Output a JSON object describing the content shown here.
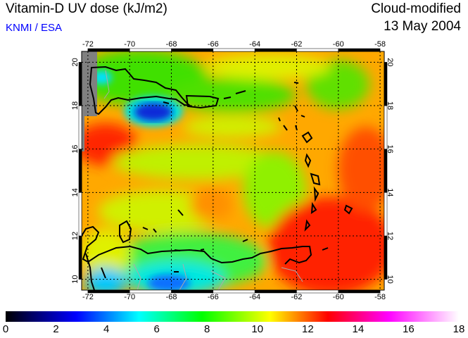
{
  "header": {
    "title": "Vitamin-D UV dose (kJ/m2)",
    "credit": "KNMI / ESA",
    "mode": "Cloud-modified",
    "date": "13 May 2004"
  },
  "map": {
    "lon_ticks": [
      "-72",
      "-70",
      "-68",
      "-66",
      "-64",
      "-62",
      "-60",
      "-58"
    ],
    "lat_ticks": [
      "20",
      "18",
      "16",
      "14",
      "12",
      "10"
    ],
    "lon_range": [
      -72.3,
      -57.8
    ],
    "lat_range": [
      9.5,
      20.5
    ]
  },
  "colorbar": {
    "ticks": [
      "0",
      "2",
      "4",
      "6",
      "8",
      "10",
      "12",
      "14",
      "16",
      "18"
    ],
    "range": [
      0,
      18
    ],
    "stops": [
      {
        "v": 0,
        "c": "#000000"
      },
      {
        "v": 1,
        "c": "#000060"
      },
      {
        "v": 2.8,
        "c": "#0000ff"
      },
      {
        "v": 5.3,
        "c": "#00ffff"
      },
      {
        "v": 7.8,
        "c": "#00ff00"
      },
      {
        "v": 10.5,
        "c": "#ffff00"
      },
      {
        "v": 11.5,
        "c": "#ff9000"
      },
      {
        "v": 12.8,
        "c": "#ff0000"
      },
      {
        "v": 15.2,
        "c": "#ff00ff"
      },
      {
        "v": 18,
        "c": "#ffffff"
      }
    ]
  }
}
